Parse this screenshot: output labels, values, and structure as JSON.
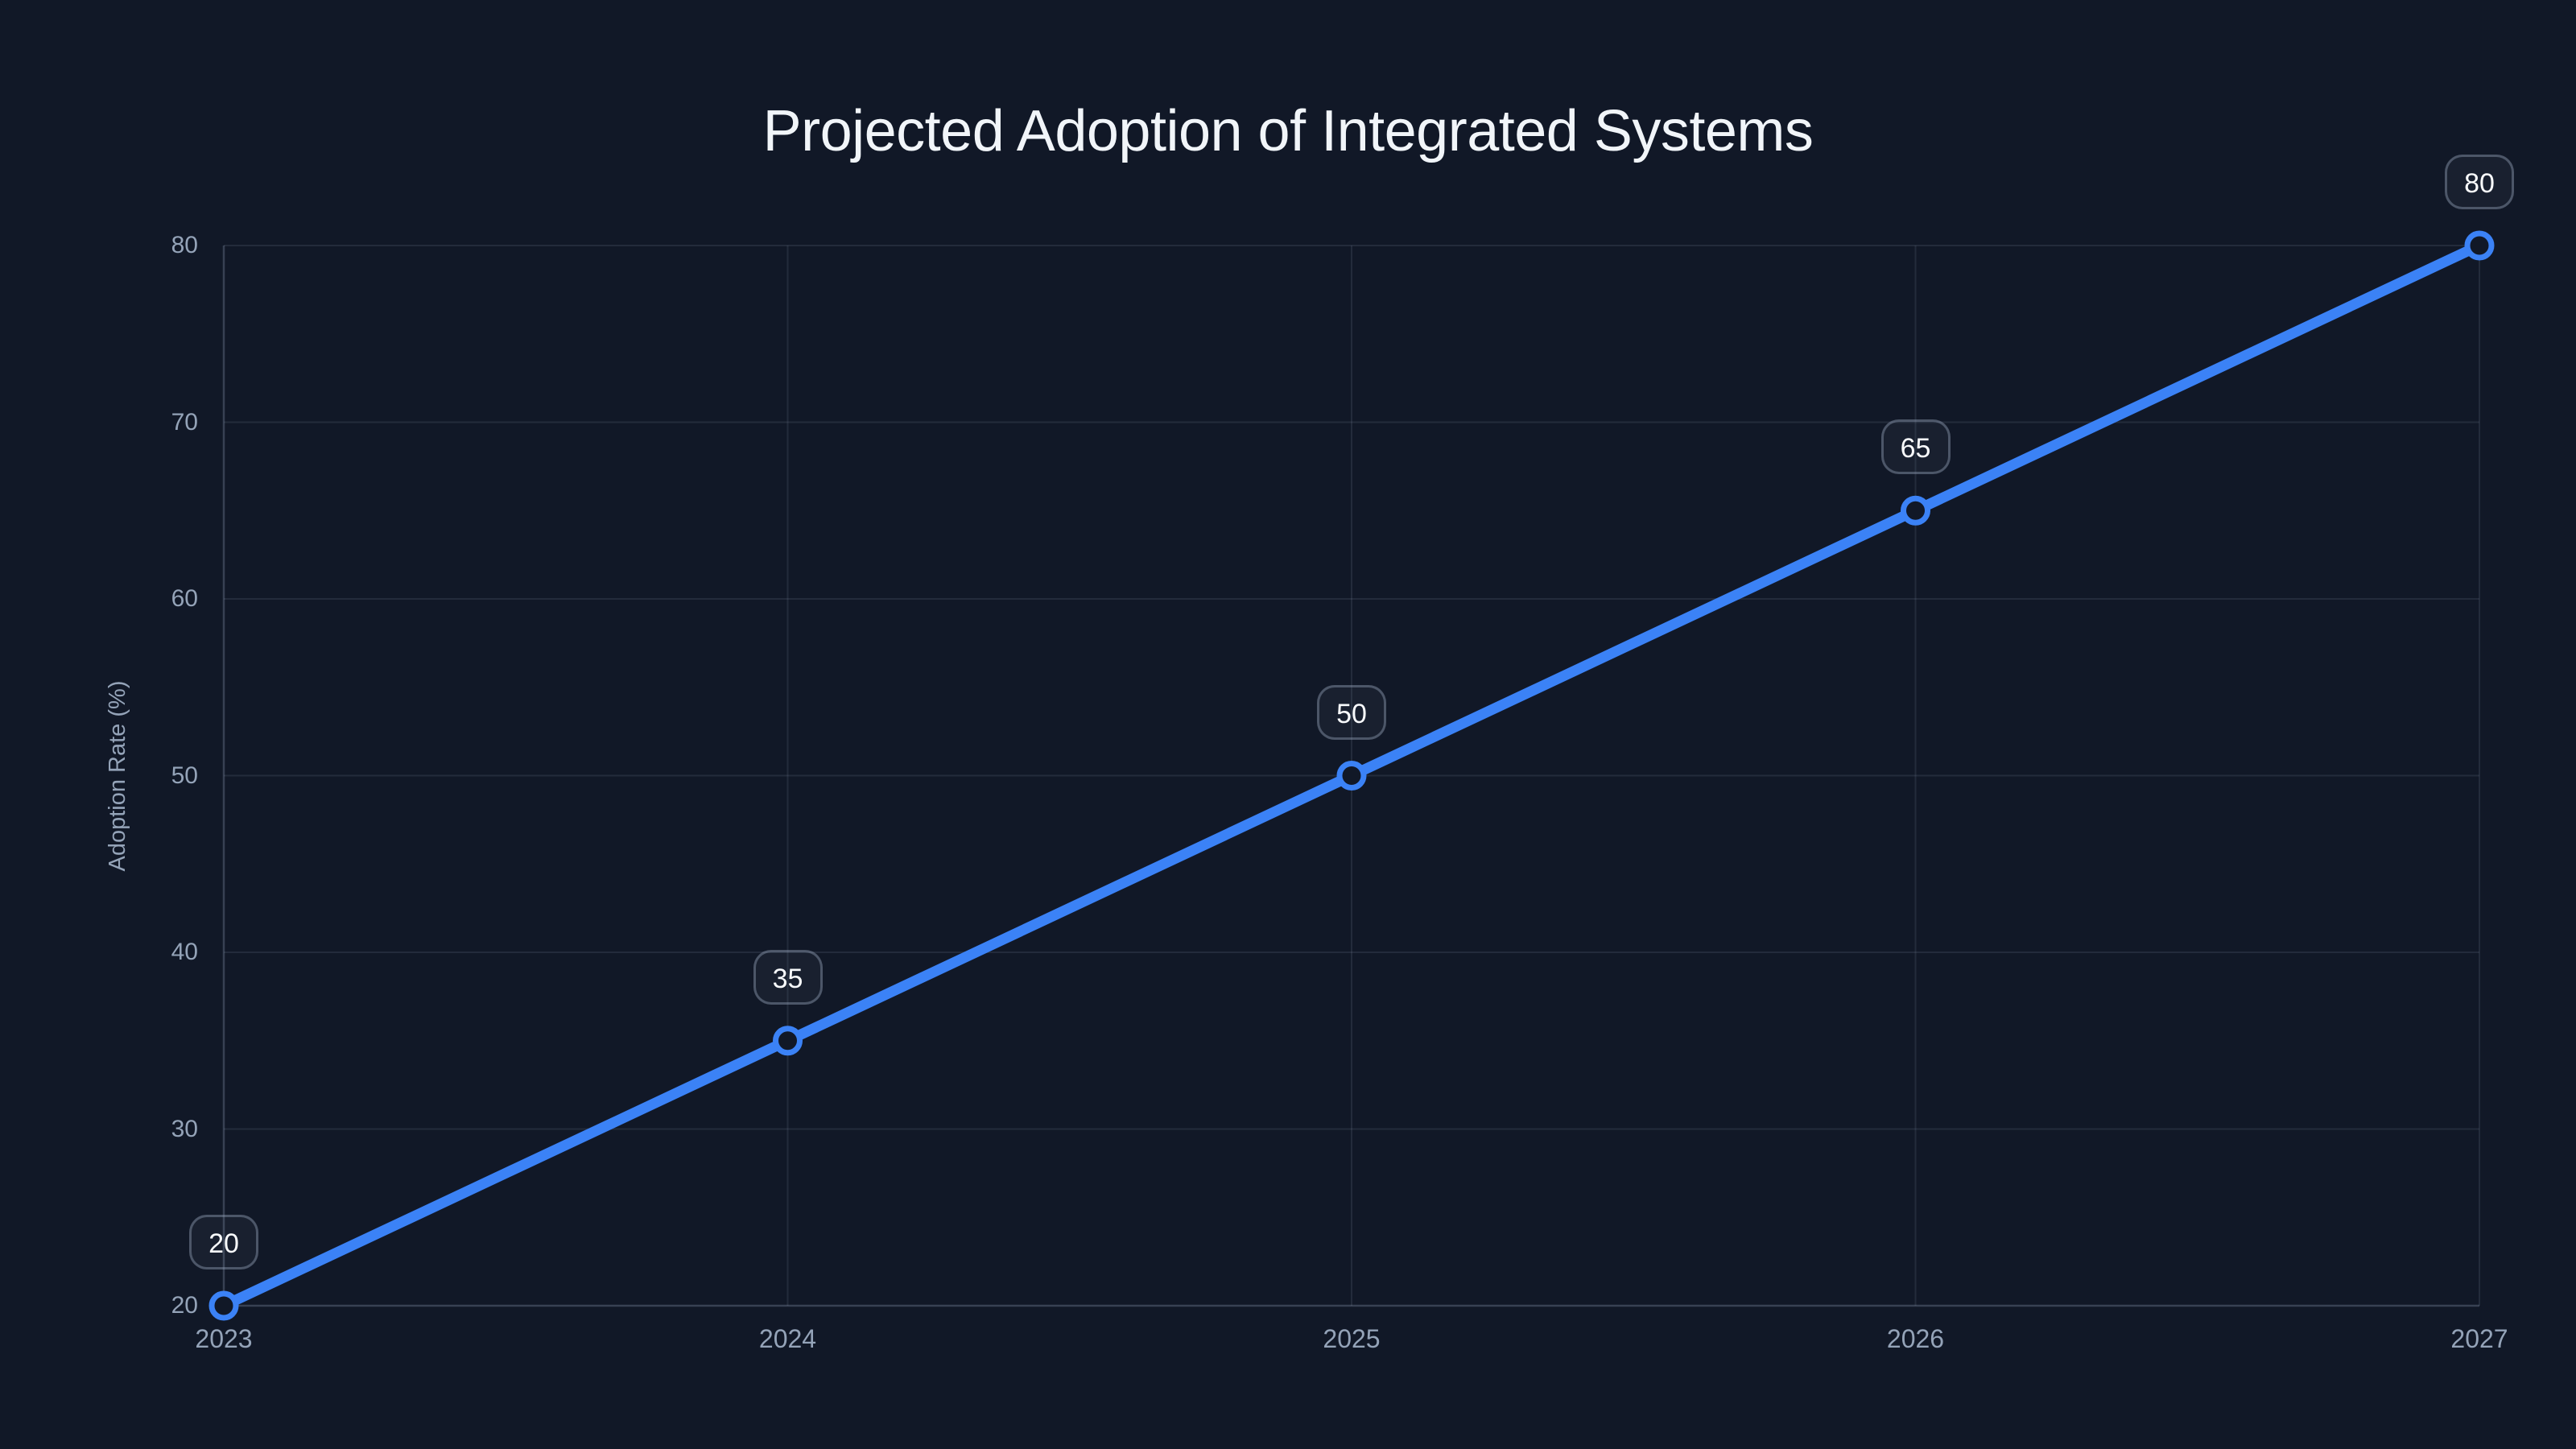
{
  "page": {
    "background_color": "#111827"
  },
  "chart_data": {
    "type": "line",
    "title": "Projected Adoption of Integrated Systems",
    "xlabel": "",
    "ylabel": "Adoption Rate (%)",
    "categories": [
      "2023",
      "2024",
      "2025",
      "2026",
      "2027"
    ],
    "series": [
      {
        "name": "Adoption Rate (%)",
        "values": [
          20,
          35,
          50,
          65,
          80
        ]
      }
    ],
    "point_labels": [
      "20",
      "35",
      "50",
      "65",
      "80"
    ],
    "y_ticks": [
      "20",
      "30",
      "40",
      "50",
      "60",
      "70",
      "80"
    ],
    "y_tick_values": [
      20,
      30,
      40,
      50,
      60,
      70,
      80
    ],
    "ylim": [
      20,
      80
    ],
    "grid": "on",
    "legend": "none",
    "colors": {
      "line": "#3b82f6",
      "marker_ring": "#3b82f6",
      "marker_fill": "#111827",
      "grid_line": "rgba(148,163,184,0.14)",
      "axis_line": "rgba(148,163,184,0.30)",
      "tick_label": "#94a3b8",
      "title_text": "#f1f5f9",
      "point_label_text": "#f8fafc",
      "point_label_border": "rgba(148,163,184,0.42)"
    }
  }
}
